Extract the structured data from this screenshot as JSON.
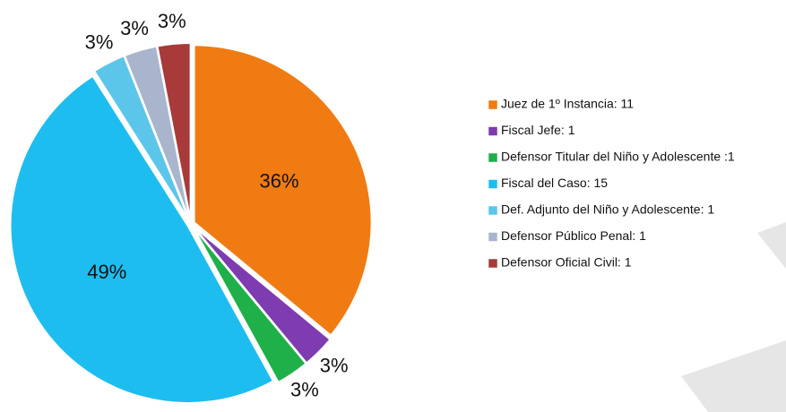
{
  "chart_data": {
    "type": "pie",
    "categories": [
      "Juez de 1º Instancia: 11",
      "Fiscal Jefe: 1",
      "Defensor Titular del Niño y Adolescente :1",
      "Fiscal del Caso: 15",
      "Def. Adjunto del Niño y Adolescente: 1",
      "Defensor Público Penal: 1",
      "Defensor Oficial Civil: 1"
    ],
    "values": [
      36,
      3,
      3,
      49,
      3,
      3,
      3
    ],
    "value_labels": [
      "36%",
      "3%",
      "3%",
      "49%",
      "3%",
      "3%",
      "3%"
    ],
    "colors": [
      "#f07b12",
      "#7e3cb0",
      "#1fb04a",
      "#1ebdf0",
      "#5cc6ea",
      "#a9b5cc",
      "#a83a3a"
    ],
    "legend": "right"
  }
}
